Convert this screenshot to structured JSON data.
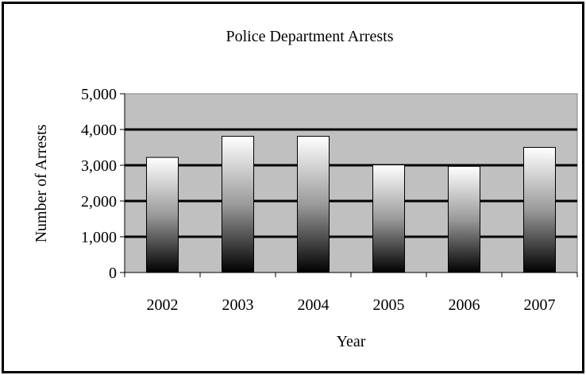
{
  "chart_data": {
    "type": "bar",
    "title": "Police Department Arrests",
    "xlabel": "Year",
    "ylabel": "Number of Arrests",
    "categories": [
      "2002",
      "2003",
      "2004",
      "2005",
      "2006",
      "2007"
    ],
    "series": [
      {
        "values": [
          3220,
          3810,
          3810,
          3010,
          2970,
          3500
        ]
      }
    ],
    "ylim": [
      0,
      5000
    ],
    "yticks": [
      0,
      1000,
      2000,
      3000,
      4000,
      5000
    ],
    "ytick_labels": [
      "0",
      "1,000",
      "2,000",
      "3,000",
      "4,000",
      "5,000"
    ],
    "grid": true,
    "legend": "none",
    "colors": {
      "plot_background": "#c0c0c0",
      "bar_gradient_top": "#ffffff",
      "bar_gradient_mid": "#808080",
      "bar_gradient_bottom": "#000000",
      "gridline": "#000000",
      "frame": "#000000"
    }
  }
}
